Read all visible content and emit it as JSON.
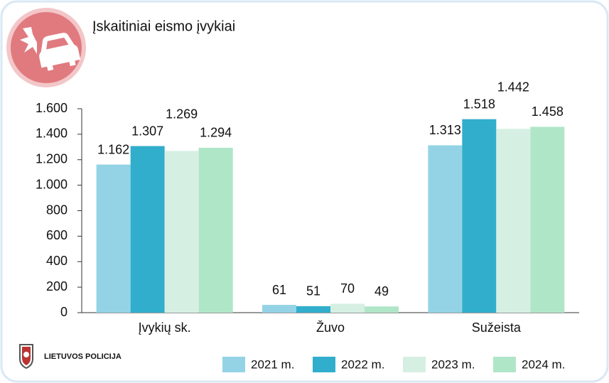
{
  "chart_data": {
    "type": "bar",
    "title": "Įskaitiniai eismo įvykiai",
    "logo": "LIETUVOS POLICIJA",
    "categories": [
      "Įvykių sk.",
      "Žuvo",
      "Sužeista"
    ],
    "series": [
      {
        "name": "2021 m.",
        "color": "#94d3e6",
        "values": [
          1162,
          61,
          1313
        ],
        "value_labels": [
          "1.162",
          "61",
          "1.313"
        ]
      },
      {
        "name": "2022 m.",
        "color": "#31aecc",
        "values": [
          1307,
          51,
          1518
        ],
        "value_labels": [
          "1.307",
          "51",
          "1.518"
        ]
      },
      {
        "name": "2023 m.",
        "color": "#d6efe3",
        "values": [
          1269,
          70,
          1442
        ],
        "value_labels": [
          "1.269",
          "70",
          "1.442"
        ]
      },
      {
        "name": "2024 m.",
        "color": "#b0e6c8",
        "values": [
          1294,
          49,
          1458
        ],
        "value_labels": [
          "1.294",
          "49",
          "1.458"
        ]
      }
    ],
    "ylim": [
      0,
      1600
    ],
    "yticks": [
      0,
      200,
      400,
      600,
      800,
      {
        "value": 1000,
        "label": "1.000"
      },
      {
        "value": 1200,
        "label": "1.200"
      },
      {
        "value": 1400,
        "label": "1.400"
      },
      {
        "value": 1600,
        "label": "1.600"
      }
    ],
    "grid": false,
    "legend": "bottom"
  }
}
